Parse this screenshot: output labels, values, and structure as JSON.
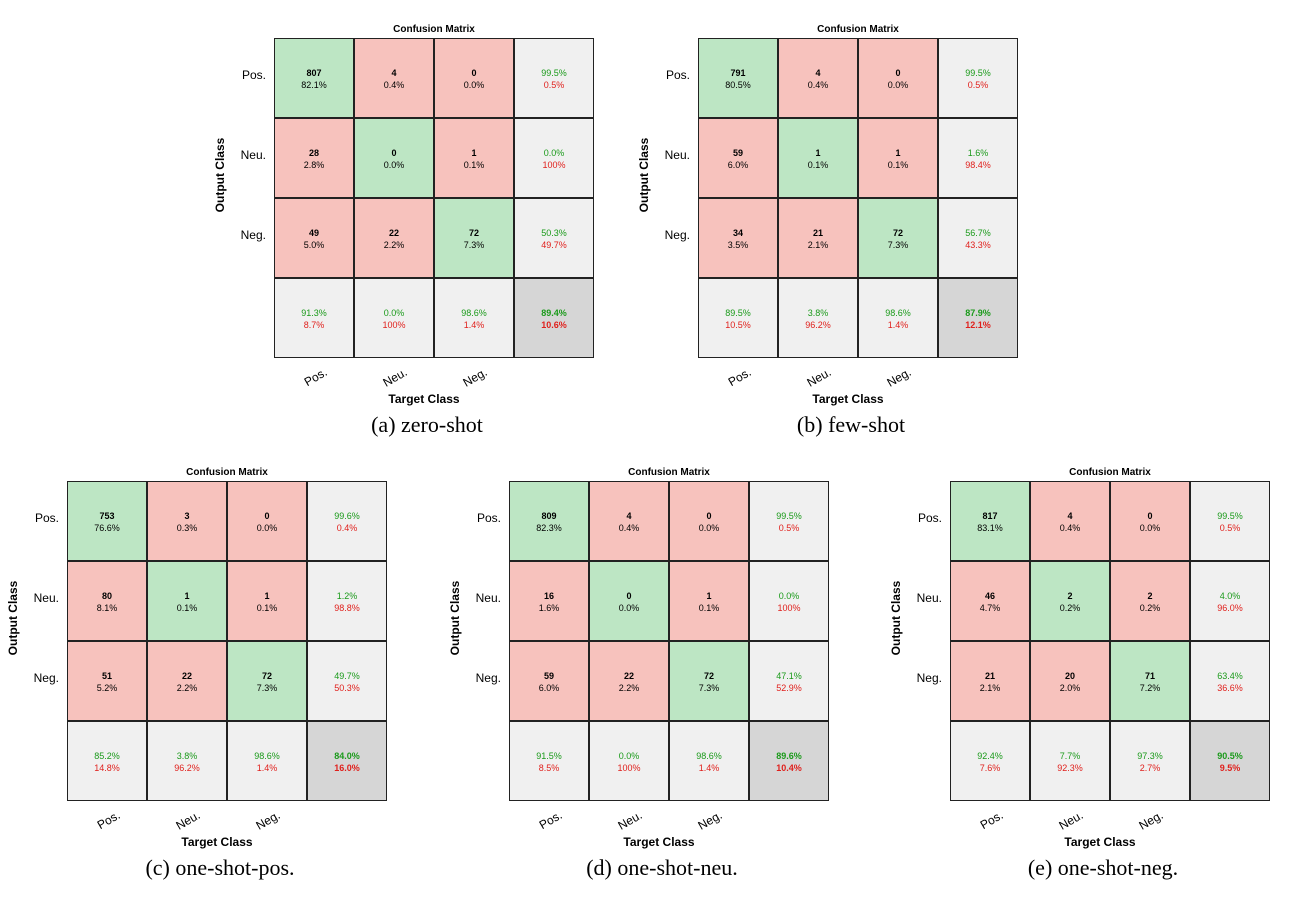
{
  "chart_data": [
    {
      "type": "heatmap",
      "title": "Confusion Matrix",
      "caption": "(a) zero-shot",
      "xlabel": "Target Class",
      "ylabel": "Output Class",
      "row_labels": [
        "Pos.",
        "Neu.",
        "Neg."
      ],
      "col_labels": [
        "Pos.",
        "Neu.",
        "Neg."
      ],
      "counts": [
        [
          807,
          4,
          0
        ],
        [
          28,
          0,
          1
        ],
        [
          49,
          22,
          72
        ]
      ],
      "cell_pct": [
        [
          "82.1%",
          "0.4%",
          "0.0%"
        ],
        [
          "2.8%",
          "0.0%",
          "0.1%"
        ],
        [
          "5.0%",
          "2.2%",
          "7.3%"
        ]
      ],
      "row_summary": [
        [
          "99.5%",
          "0.5%"
        ],
        [
          "0.0%",
          "100%"
        ],
        [
          "50.3%",
          "49.7%"
        ]
      ],
      "col_summary": [
        [
          "91.3%",
          "8.7%"
        ],
        [
          "0.0%",
          "100%"
        ],
        [
          "98.6%",
          "1.4%"
        ]
      ],
      "overall": [
        "89.4%",
        "10.6%"
      ]
    },
    {
      "type": "heatmap",
      "title": "Confusion Matrix",
      "caption": "(b) few-shot",
      "xlabel": "Target Class",
      "ylabel": "Output Class",
      "row_labels": [
        "Pos.",
        "Neu.",
        "Neg."
      ],
      "col_labels": [
        "Pos.",
        "Neu.",
        "Neg."
      ],
      "counts": [
        [
          791,
          4,
          0
        ],
        [
          59,
          1,
          1
        ],
        [
          34,
          21,
          72
        ]
      ],
      "cell_pct": [
        [
          "80.5%",
          "0.4%",
          "0.0%"
        ],
        [
          "6.0%",
          "0.1%",
          "0.1%"
        ],
        [
          "3.5%",
          "2.1%",
          "7.3%"
        ]
      ],
      "row_summary": [
        [
          "99.5%",
          "0.5%"
        ],
        [
          "1.6%",
          "98.4%"
        ],
        [
          "56.7%",
          "43.3%"
        ]
      ],
      "col_summary": [
        [
          "89.5%",
          "10.5%"
        ],
        [
          "3.8%",
          "96.2%"
        ],
        [
          "98.6%",
          "1.4%"
        ]
      ],
      "overall": [
        "87.9%",
        "12.1%"
      ]
    },
    {
      "type": "heatmap",
      "title": "Confusion Matrix",
      "caption": "(c) one-shot-pos.",
      "xlabel": "Target Class",
      "ylabel": "Output Class",
      "row_labels": [
        "Pos.",
        "Neu.",
        "Neg."
      ],
      "col_labels": [
        "Pos.",
        "Neu.",
        "Neg."
      ],
      "counts": [
        [
          753,
          3,
          0
        ],
        [
          80,
          1,
          1
        ],
        [
          51,
          22,
          72
        ]
      ],
      "cell_pct": [
        [
          "76.6%",
          "0.3%",
          "0.0%"
        ],
        [
          "8.1%",
          "0.1%",
          "0.1%"
        ],
        [
          "5.2%",
          "2.2%",
          "7.3%"
        ]
      ],
      "row_summary": [
        [
          "99.6%",
          "0.4%"
        ],
        [
          "1.2%",
          "98.8%"
        ],
        [
          "49.7%",
          "50.3%"
        ]
      ],
      "col_summary": [
        [
          "85.2%",
          "14.8%"
        ],
        [
          "3.8%",
          "96.2%"
        ],
        [
          "98.6%",
          "1.4%"
        ]
      ],
      "overall": [
        "84.0%",
        "16.0%"
      ]
    },
    {
      "type": "heatmap",
      "title": "Confusion Matrix",
      "caption": "(d) one-shot-neu.",
      "xlabel": "Target Class",
      "ylabel": "Output Class",
      "row_labels": [
        "Pos.",
        "Neu.",
        "Neg."
      ],
      "col_labels": [
        "Pos.",
        "Neu.",
        "Neg."
      ],
      "counts": [
        [
          809,
          4,
          0
        ],
        [
          16,
          0,
          1
        ],
        [
          59,
          22,
          72
        ]
      ],
      "cell_pct": [
        [
          "82.3%",
          "0.4%",
          "0.0%"
        ],
        [
          "1.6%",
          "0.0%",
          "0.1%"
        ],
        [
          "6.0%",
          "2.2%",
          "7.3%"
        ]
      ],
      "row_summary": [
        [
          "99.5%",
          "0.5%"
        ],
        [
          "0.0%",
          "100%"
        ],
        [
          "47.1%",
          "52.9%"
        ]
      ],
      "col_summary": [
        [
          "91.5%",
          "8.5%"
        ],
        [
          "0.0%",
          "100%"
        ],
        [
          "98.6%",
          "1.4%"
        ]
      ],
      "overall": [
        "89.6%",
        "10.4%"
      ]
    },
    {
      "type": "heatmap",
      "title": "Confusion Matrix",
      "caption": "(e) one-shot-neg.",
      "xlabel": "Target Class",
      "ylabel": "Output Class",
      "row_labels": [
        "Pos.",
        "Neu.",
        "Neg."
      ],
      "col_labels": [
        "Pos.",
        "Neu.",
        "Neg."
      ],
      "counts": [
        [
          817,
          4,
          0
        ],
        [
          46,
          2,
          2
        ],
        [
          21,
          20,
          71
        ]
      ],
      "cell_pct": [
        [
          "83.1%",
          "0.4%",
          "0.0%"
        ],
        [
          "4.7%",
          "0.2%",
          "0.2%"
        ],
        [
          "2.1%",
          "2.0%",
          "7.2%"
        ]
      ],
      "row_summary": [
        [
          "99.5%",
          "0.5%"
        ],
        [
          "4.0%",
          "96.0%"
        ],
        [
          "63.4%",
          "36.6%"
        ]
      ],
      "col_summary": [
        [
          "92.4%",
          "7.6%"
        ],
        [
          "7.7%",
          "92.3%"
        ],
        [
          "97.3%",
          "2.7%"
        ]
      ],
      "overall": [
        "90.5%",
        "9.5%"
      ]
    }
  ]
}
